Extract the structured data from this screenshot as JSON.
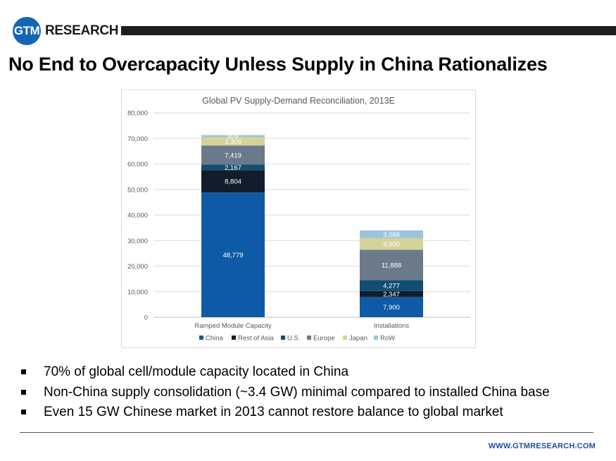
{
  "header": {
    "logo_badge": "GTM",
    "logo_word": "RESEARCH",
    "title": "No End to Overcapacity Unless Supply in China Rationalizes"
  },
  "chart_data": {
    "type": "bar",
    "stacked": true,
    "title": "Global PV Supply-Demand Reconciliation, 2013E",
    "xlabel": "",
    "ylabel": "",
    "categories": [
      "Ramped Module Capacity",
      "Installations"
    ],
    "ylim": [
      0,
      80000
    ],
    "yticks": [
      0,
      10000,
      20000,
      30000,
      40000,
      50000,
      60000,
      70000,
      80000
    ],
    "ytick_labels": [
      "0",
      "10,000",
      "20,000",
      "30,000",
      "40,000",
      "50,000",
      "60,000",
      "70,000",
      "80,000"
    ],
    "grid": true,
    "legend_position": "bottom",
    "series": [
      {
        "name": "China",
        "color": "#0f5aa6",
        "label_color": "#ffffff",
        "values": [
          48779,
          7900
        ],
        "labels": [
          "48,779",
          "7,900"
        ]
      },
      {
        "name": "Rest of Asia",
        "color": "#111d2c",
        "label_color": "#ffffff",
        "values": [
          8804,
          2347
        ],
        "labels": [
          "8,804",
          "2,347"
        ]
      },
      {
        "name": "U.S.",
        "color": "#114e73",
        "label_color": "#ffffff",
        "values": [
          2167,
          4277
        ],
        "labels": [
          "2,167",
          "4,277"
        ]
      },
      {
        "name": "Europe",
        "color": "#6b7a8b",
        "label_color": "#ffffff",
        "values": [
          7419,
          11888
        ],
        "labels": [
          "7,419",
          "11,888"
        ]
      },
      {
        "name": "Japan",
        "color": "#d5d29a",
        "label_color": "#ffffff",
        "values": [
          3306,
          4500
        ],
        "labels": [
          "3,306",
          "4,500"
        ]
      },
      {
        "name": "RoW",
        "color": "#9cc5d9",
        "label_color": "#ffffff",
        "values": [
          809,
          3068
        ],
        "labels": [
          "809",
          "3,068"
        ]
      }
    ]
  },
  "bullets": [
    "70% of global cell/module capacity located in China",
    "Non-China supply consolidation (~3.4 GW) minimal compared to installed China base",
    "Even 15 GW Chinese market in 2013 cannot restore balance to global market"
  ],
  "footer": {
    "url": "WWW.GTMRESEARCH.COM"
  }
}
